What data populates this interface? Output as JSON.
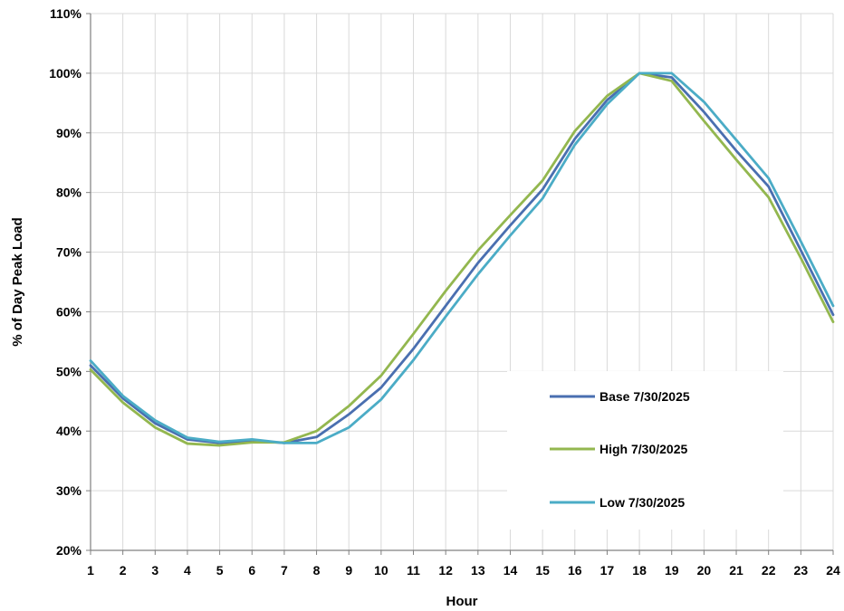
{
  "chart_data": {
    "type": "line",
    "xlabel": "Hour",
    "ylabel": "% of Day Peak Load",
    "x": [
      1,
      2,
      3,
      4,
      5,
      6,
      7,
      8,
      9,
      10,
      11,
      12,
      13,
      14,
      15,
      16,
      17,
      18,
      19,
      20,
      21,
      22,
      23,
      24
    ],
    "ylim": [
      20,
      110
    ],
    "yticks": [
      "20%",
      "30%",
      "40%",
      "50%",
      "60%",
      "70%",
      "80%",
      "90%",
      "100%",
      "110%"
    ],
    "ytick_values": [
      20,
      30,
      40,
      50,
      60,
      70,
      80,
      90,
      100,
      110
    ],
    "grid": true,
    "legend_position": "lower-right",
    "series": [
      {
        "name": "Base 7/30/2025",
        "color": "#4a6fb0",
        "values": [
          51.0,
          45.5,
          41.3,
          38.6,
          38.0,
          38.4,
          38.0,
          39.0,
          42.8,
          47.3,
          53.8,
          61.0,
          68.2,
          74.5,
          80.5,
          89.0,
          95.5,
          100.0,
          99.3,
          93.5,
          87.0,
          81.0,
          70.3,
          59.5
        ]
      },
      {
        "name": "High 7/30/2025",
        "color": "#93b74f",
        "values": [
          50.3,
          44.8,
          40.6,
          37.9,
          37.6,
          38.1,
          38.1,
          40.0,
          44.2,
          49.3,
          56.3,
          63.5,
          70.3,
          76.2,
          82.0,
          90.3,
          96.2,
          100.0,
          98.7,
          92.0,
          85.5,
          79.2,
          69.0,
          58.3
        ]
      },
      {
        "name": "Low 7/30/2025",
        "color": "#4bacc6",
        "values": [
          51.8,
          45.9,
          41.8,
          38.9,
          38.2,
          38.6,
          38.0,
          38.0,
          40.6,
          45.3,
          51.9,
          59.2,
          66.3,
          72.8,
          79.0,
          88.0,
          94.8,
          100.0,
          100.0,
          95.2,
          88.8,
          82.4,
          71.8,
          61.0
        ]
      }
    ]
  }
}
